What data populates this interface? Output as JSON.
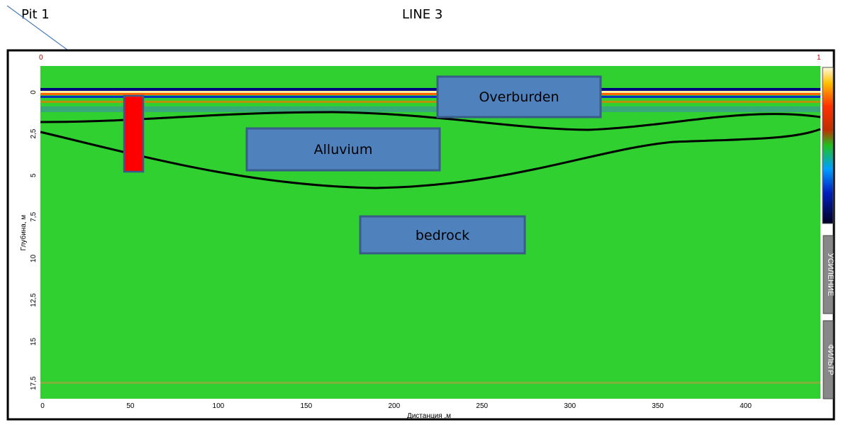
{
  "header": {
    "left": "Pit 1",
    "title": "LINE 3"
  },
  "corner_labels": {
    "left": "0",
    "right": "1"
  },
  "axes": {
    "y_label": "Глубина, м",
    "x_label": "Дистанция ,м",
    "y_ticks": [
      "0",
      "2,5",
      "5",
      "7,5",
      "10",
      "12,5",
      "15",
      "17,5"
    ],
    "x_ticks": [
      0,
      50,
      100,
      150,
      200,
      250,
      300,
      350,
      400
    ]
  },
  "annotations": {
    "overburden": "Overburden",
    "alluvium": "Alluvium",
    "bedrock": "bedrock"
  },
  "side_buttons": {
    "gain": "УСИЛЕНИЕ",
    "filter": "ФИЛЬТР"
  }
}
